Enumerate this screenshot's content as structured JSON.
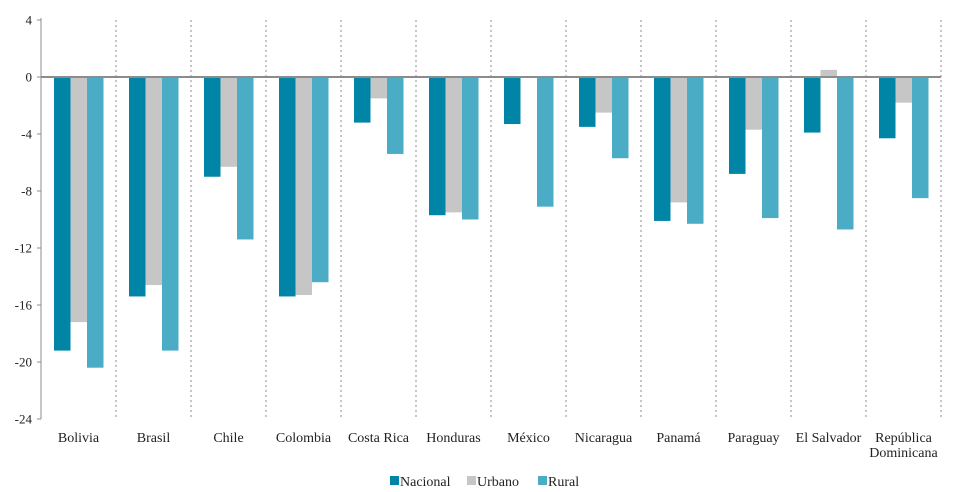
{
  "chart_data": {
    "type": "bar",
    "title": "",
    "xlabel": "",
    "ylabel": "",
    "ylim": [
      -24,
      4
    ],
    "yticks": [
      4,
      0,
      -4,
      -8,
      -12,
      -16,
      -20,
      -24
    ],
    "grid": false,
    "legend_position": "bottom",
    "categories": [
      [
        "Bolivia"
      ],
      [
        "Brasil"
      ],
      [
        "Chile"
      ],
      [
        "Colombia"
      ],
      [
        "Costa Rica"
      ],
      [
        "Honduras"
      ],
      [
        "México"
      ],
      [
        "Nicaragua"
      ],
      [
        "Panamá"
      ],
      [
        "Paraguay"
      ],
      [
        "El Salvador"
      ],
      [
        "República",
        "Dominicana"
      ]
    ],
    "series": [
      {
        "name": "Nacional",
        "color": "#0085a6",
        "values": [
          -19.2,
          -15.4,
          -7.0,
          -15.4,
          -3.2,
          -9.7,
          -3.3,
          -3.5,
          -10.1,
          -6.8,
          -3.9,
          -4.3
        ]
      },
      {
        "name": "Urbano",
        "color": "#c6c6c6",
        "values": [
          -17.2,
          -14.6,
          -6.3,
          -15.3,
          -1.5,
          -9.5,
          0.0,
          -2.5,
          -8.8,
          -3.7,
          0.5,
          -1.8
        ]
      },
      {
        "name": "Rural",
        "color": "#4bacc6",
        "values": [
          -20.4,
          -19.2,
          -11.4,
          -14.4,
          -5.4,
          -10.0,
          -9.1,
          -5.7,
          -10.3,
          -9.9,
          -10.7,
          -8.5
        ]
      }
    ]
  }
}
